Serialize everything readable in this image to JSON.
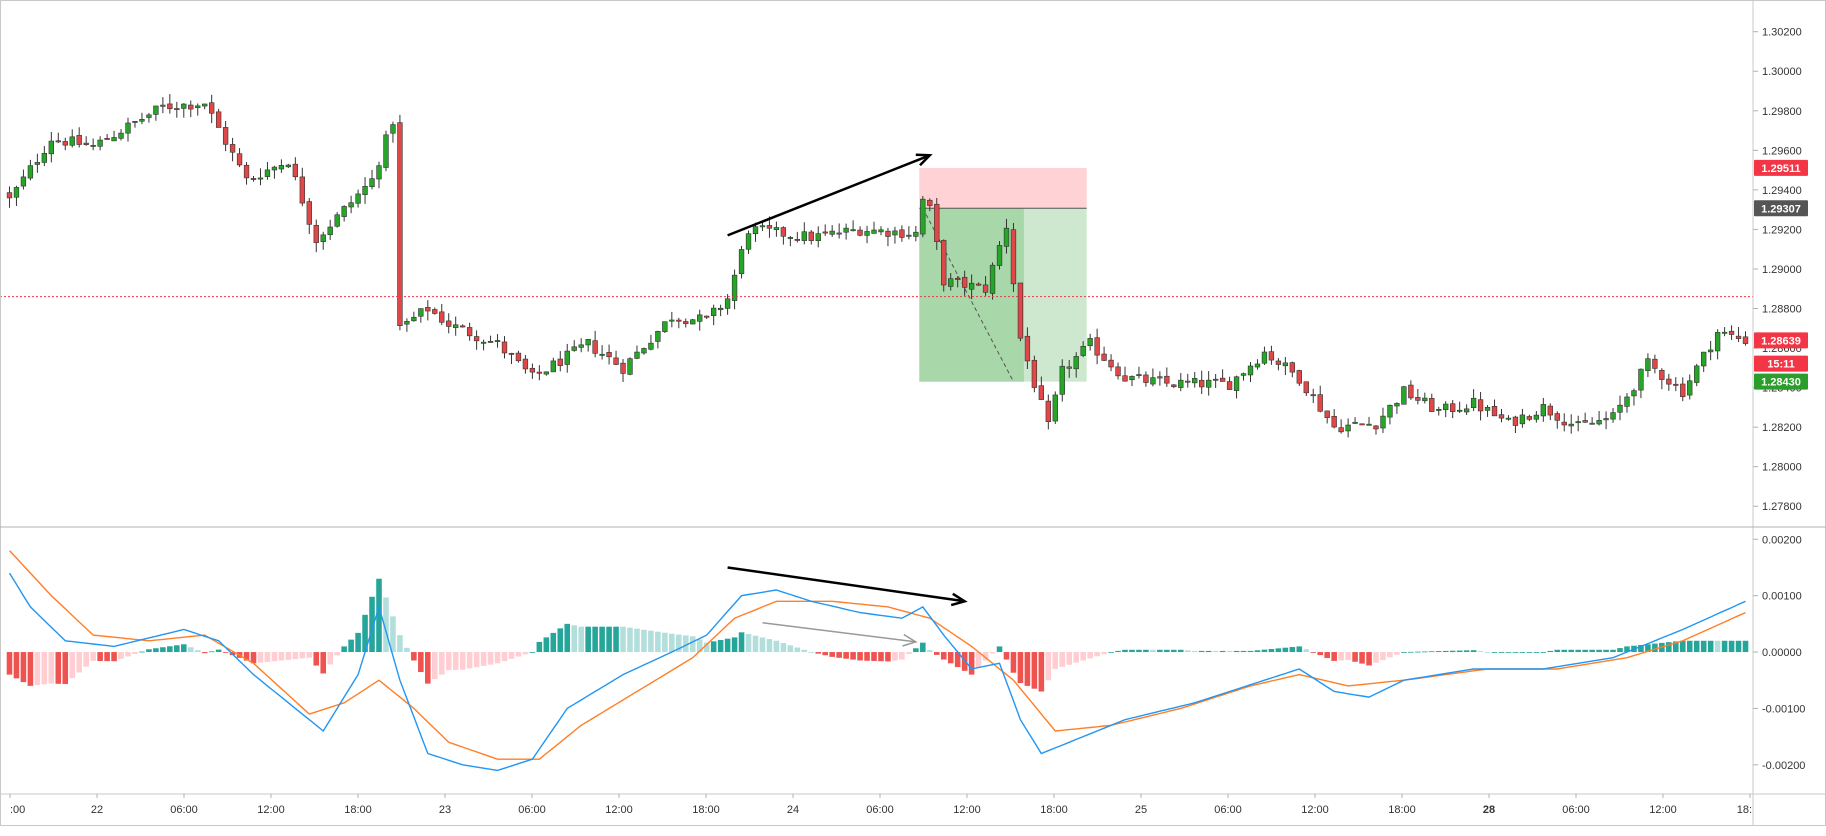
{
  "chart_data": [
    {
      "type": "candlestick",
      "title": "",
      "price_axis": {
        "ylim": [
          1.277,
          1.3033
        ],
        "ticks": [
          "1.30200",
          "1.30000",
          "1.29800",
          "1.29600",
          "1.29400",
          "1.29200",
          "1.29000",
          "1.28800",
          "1.28600",
          "1.28400",
          "1.28200",
          "1.28000",
          "1.27800"
        ],
        "tick_values": [
          1.302,
          1.3,
          1.298,
          1.296,
          1.294,
          1.292,
          1.29,
          1.288,
          1.286,
          1.284,
          1.282,
          1.28,
          1.278
        ],
        "badges": [
          {
            "label": "1.29511",
            "value": 1.29511,
            "color": "#f23645"
          },
          {
            "label": "1.29307",
            "value": 1.29307,
            "color": "#555555"
          },
          {
            "label": "1.28639",
            "value": 1.28639,
            "color": "#f23645"
          },
          {
            "label": "15:11",
            "value": 1.28521,
            "color": "#f23645"
          },
          {
            "label": "1.28430",
            "value": 1.2843,
            "color": "#2a9d2a"
          }
        ]
      },
      "time_axis": {
        "labels": [
          ":00",
          "22",
          "06:00",
          "12:00",
          "18:00",
          "23",
          "06:00",
          "12:00",
          "18:00",
          "24",
          "06:00",
          "12:00",
          "18:00",
          "25",
          "06:00",
          "12:00",
          "18:00",
          "28",
          "06:00",
          "12:00",
          "18:"
        ],
        "bold": [
          "28"
        ]
      },
      "horizontal_line": {
        "value": 1.2886,
        "color": "#f23645",
        "style": "dotted"
      },
      "position_tool": {
        "entry": 1.29307,
        "stop": 1.29511,
        "target": 1.2843,
        "start_bar": 131,
        "end_bar": 154,
        "fill_end_bar": 145,
        "stop_color": "#ffcdd2",
        "target_color": "#a5d6a7",
        "target_pending_color": "#c8e6c9"
      },
      "annotation": {
        "type": "arrow",
        "from": {
          "bar": 103,
          "price": 1.2917
        },
        "to": {
          "bar": 132,
          "price": 1.29575
        },
        "color": "#000000"
      },
      "candles": {
        "count": 250,
        "up_color": "#26a626",
        "down_color": "#e04848",
        "anchors": [
          [
            0,
            1.2935
          ],
          [
            6,
            1.2966
          ],
          [
            12,
            1.2962
          ],
          [
            22,
            1.2982
          ],
          [
            28,
            1.2984
          ],
          [
            34,
            1.2945
          ],
          [
            40,
            1.2955
          ],
          [
            44,
            1.2915
          ],
          [
            52,
            1.2945
          ],
          [
            55,
            1.2975
          ],
          [
            56,
            1.287
          ],
          [
            60,
            1.288
          ],
          [
            63,
            1.2872
          ],
          [
            70,
            1.2862
          ],
          [
            75,
            1.2845
          ],
          [
            83,
            1.2862
          ],
          [
            88,
            1.285
          ],
          [
            95,
            1.2876
          ],
          [
            100,
            1.2874
          ],
          [
            103,
            1.2885
          ],
          [
            106,
            1.292
          ],
          [
            115,
            1.2916
          ],
          [
            122,
            1.292
          ],
          [
            130,
            1.2918
          ],
          [
            131,
            1.2935
          ],
          [
            132,
            1.293
          ],
          [
            134,
            1.2894
          ],
          [
            140,
            1.289
          ],
          [
            143,
            1.2922
          ],
          [
            145,
            1.2865
          ],
          [
            147,
            1.2842
          ],
          [
            149,
            1.282
          ],
          [
            151,
            1.2848
          ],
          [
            155,
            1.2862
          ],
          [
            160,
            1.2845
          ],
          [
            166,
            1.2842
          ],
          [
            175,
            1.2842
          ],
          [
            180,
            1.2858
          ],
          [
            185,
            1.2845
          ],
          [
            190,
            1.282
          ],
          [
            196,
            1.2822
          ],
          [
            200,
            1.2838
          ],
          [
            205,
            1.2828
          ],
          [
            210,
            1.2832
          ],
          [
            215,
            1.2822
          ],
          [
            220,
            1.283
          ],
          [
            225,
            1.282
          ],
          [
            230,
            1.2825
          ],
          [
            235,
            1.2852
          ],
          [
            240,
            1.2838
          ],
          [
            245,
            1.2868
          ],
          [
            249,
            1.2864
          ]
        ]
      }
    },
    {
      "type": "macd",
      "title": "",
      "ylim": [
        -0.0025,
        0.0022
      ],
      "ticks": [
        "0.00200",
        "0.00100",
        "0.00000",
        "-0.00100",
        "-0.00200"
      ],
      "tick_values": [
        0.002,
        0.001,
        0.0,
        -0.001,
        -0.002
      ],
      "macd_color": "#2196f3",
      "signal_color": "#ff7f27",
      "histogram_colors": {
        "up_strong": "#26a69a",
        "up_weak": "#b2dfdb",
        "down_strong": "#ef5350",
        "down_weak": "#ffcdd2"
      },
      "macd_anchors": [
        [
          0,
          0.0014
        ],
        [
          3,
          0.0008
        ],
        [
          8,
          0.0002
        ],
        [
          15,
          0.0001
        ],
        [
          25,
          0.0004
        ],
        [
          30,
          0.0002
        ],
        [
          35,
          -0.0004
        ],
        [
          40,
          -0.0009
        ],
        [
          45,
          -0.0014
        ],
        [
          50,
          -0.0004
        ],
        [
          53,
          0.0008
        ],
        [
          56,
          -0.0005
        ],
        [
          60,
          -0.0018
        ],
        [
          65,
          -0.002
        ],
        [
          70,
          -0.0021
        ],
        [
          75,
          -0.0019
        ],
        [
          80,
          -0.001
        ],
        [
          88,
          -0.0004
        ],
        [
          95,
          0.0
        ],
        [
          100,
          0.0003
        ],
        [
          105,
          0.001
        ],
        [
          110,
          0.0011
        ],
        [
          115,
          0.0009
        ],
        [
          122,
          0.0007
        ],
        [
          128,
          0.0006
        ],
        [
          131,
          0.0008
        ],
        [
          134,
          0.0003
        ],
        [
          138,
          -0.0003
        ],
        [
          142,
          -0.0002
        ],
        [
          145,
          -0.0012
        ],
        [
          148,
          -0.0018
        ],
        [
          152,
          -0.0016
        ],
        [
          160,
          -0.0012
        ],
        [
          170,
          -0.0009
        ],
        [
          180,
          -0.0005
        ],
        [
          185,
          -0.0003
        ],
        [
          190,
          -0.0007
        ],
        [
          195,
          -0.0008
        ],
        [
          200,
          -0.0005
        ],
        [
          210,
          -0.0003
        ],
        [
          220,
          -0.0003
        ],
        [
          230,
          -0.0001
        ],
        [
          240,
          0.0004
        ],
        [
          249,
          0.0009
        ]
      ],
      "signal_anchors": [
        [
          0,
          0.0018
        ],
        [
          6,
          0.001
        ],
        [
          12,
          0.0003
        ],
        [
          20,
          0.0002
        ],
        [
          28,
          0.0003
        ],
        [
          35,
          -0.0002
        ],
        [
          43,
          -0.0011
        ],
        [
          48,
          -0.0009
        ],
        [
          53,
          -0.0005
        ],
        [
          58,
          -0.001
        ],
        [
          63,
          -0.0016
        ],
        [
          70,
          -0.0019
        ],
        [
          76,
          -0.0019
        ],
        [
          82,
          -0.0013
        ],
        [
          90,
          -0.0007
        ],
        [
          98,
          -0.0001
        ],
        [
          104,
          0.0006
        ],
        [
          110,
          0.0009
        ],
        [
          118,
          0.0009
        ],
        [
          126,
          0.0008
        ],
        [
          132,
          0.0006
        ],
        [
          138,
          0.0001
        ],
        [
          144,
          -0.0005
        ],
        [
          150,
          -0.0014
        ],
        [
          158,
          -0.0013
        ],
        [
          168,
          -0.001
        ],
        [
          178,
          -0.0006
        ],
        [
          185,
          -0.0004
        ],
        [
          192,
          -0.0006
        ],
        [
          200,
          -0.0005
        ],
        [
          212,
          -0.0003
        ],
        [
          222,
          -0.0003
        ],
        [
          232,
          -0.0001
        ],
        [
          240,
          0.0002
        ],
        [
          249,
          0.0007
        ]
      ],
      "annotations": [
        {
          "type": "arrow",
          "from": {
            "bar": 103,
            "value": 0.0015
          },
          "to": {
            "bar": 137,
            "value": 0.0009
          },
          "color": "#000000"
        },
        {
          "type": "arrow",
          "from": {
            "bar": 108,
            "value": 0.00052
          },
          "to": {
            "bar": 130,
            "value": 0.00018
          },
          "color": "#999999"
        }
      ]
    }
  ]
}
